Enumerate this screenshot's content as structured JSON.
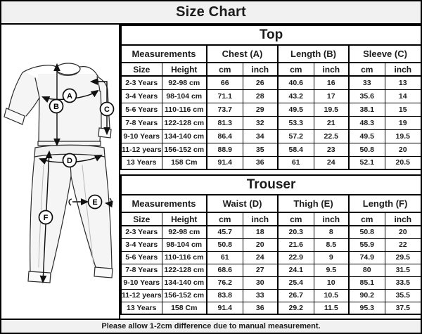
{
  "title": "Size Chart",
  "footer_note": "Please allow 1-2cm difference due to manual measurement.",
  "colors": {
    "bar_background": "#f1f1f1",
    "border": "#000000",
    "text": "#1b1b1b",
    "garment_fill": "#f5f5f5"
  },
  "diagram": {
    "labels": [
      "A",
      "B",
      "C",
      "D",
      "E",
      "F"
    ]
  },
  "tables": [
    {
      "name": "Top",
      "group_headers": [
        "Measurements",
        "Chest (A)",
        "Length (B)",
        "Sleeve (C)"
      ],
      "sub_headers": [
        "Size",
        "Height",
        "cm",
        "inch",
        "cm",
        "inch",
        "cm",
        "inch"
      ],
      "rows": [
        [
          "2-3 Years",
          "92-98 cm",
          "66",
          "26",
          "40.6",
          "16",
          "33",
          "13"
        ],
        [
          "3-4 Years",
          "98-104 cm",
          "71.1",
          "28",
          "43.2",
          "17",
          "35.6",
          "14"
        ],
        [
          "5-6 Years",
          "110-116 cm",
          "73.7",
          "29",
          "49.5",
          "19.5",
          "38.1",
          "15"
        ],
        [
          "7-8 Years",
          "122-128 cm",
          "81.3",
          "32",
          "53.3",
          "21",
          "48.3",
          "19"
        ],
        [
          "9-10 Years",
          "134-140 cm",
          "86.4",
          "34",
          "57.2",
          "22.5",
          "49.5",
          "19.5"
        ],
        [
          "11-12 years",
          "156-152 cm",
          "88.9",
          "35",
          "58.4",
          "23",
          "50.8",
          "20"
        ],
        [
          "13 Years",
          "158 Cm",
          "91.4",
          "36",
          "61",
          "24",
          "52.1",
          "20.5"
        ]
      ]
    },
    {
      "name": "Trouser",
      "group_headers": [
        "Measurements",
        "Waist (D)",
        "Thigh (E)",
        "Length (F)"
      ],
      "sub_headers": [
        "Size",
        "Height",
        "cm",
        "inch",
        "cm",
        "inch",
        "cm",
        "inch"
      ],
      "rows": [
        [
          "2-3 Years",
          "92-98 cm",
          "45.7",
          "18",
          "20.3",
          "8",
          "50.8",
          "20"
        ],
        [
          "3-4 Years",
          "98-104 cm",
          "50.8",
          "20",
          "21.6",
          "8.5",
          "55.9",
          "22"
        ],
        [
          "5-6 Years",
          "110-116 cm",
          "61",
          "24",
          "22.9",
          "9",
          "74.9",
          "29.5"
        ],
        [
          "7-8 Years",
          "122-128 cm",
          "68.6",
          "27",
          "24.1",
          "9.5",
          "80",
          "31.5"
        ],
        [
          "9-10 Years",
          "134-140 cm",
          "76.2",
          "30",
          "25.4",
          "10",
          "85.1",
          "33.5"
        ],
        [
          "11-12 years",
          "156-152 cm",
          "83.8",
          "33",
          "26.7",
          "10.5",
          "90.2",
          "35.5"
        ],
        [
          "13 Years",
          "158 Cm",
          "91.4",
          "36",
          "29.2",
          "11.5",
          "95.3",
          "37.5"
        ]
      ]
    }
  ]
}
